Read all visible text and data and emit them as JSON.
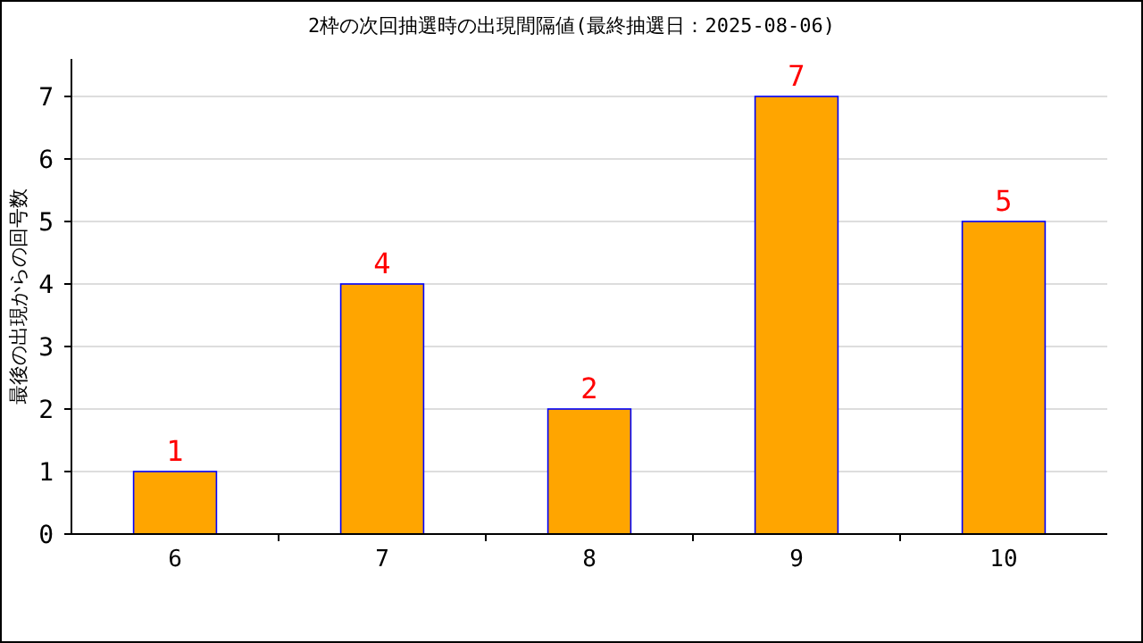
{
  "chart_data": {
    "type": "bar",
    "title": "2枠の次回抽選時の出現間隔値(最終抽選日：2025-08-06)",
    "ylabel": "最後の出現からの回号数",
    "categories": [
      "6",
      "7",
      "8",
      "9",
      "10"
    ],
    "series": [
      {
        "color": "#ffa500",
        "values": [
          1,
          4,
          2,
          7,
          5
        ]
      }
    ],
    "ylim": [
      0,
      7.6
    ],
    "yticks": [
      0,
      1,
      2,
      3,
      4,
      5,
      6,
      7
    ],
    "grid": "y",
    "data_labels": true
  }
}
